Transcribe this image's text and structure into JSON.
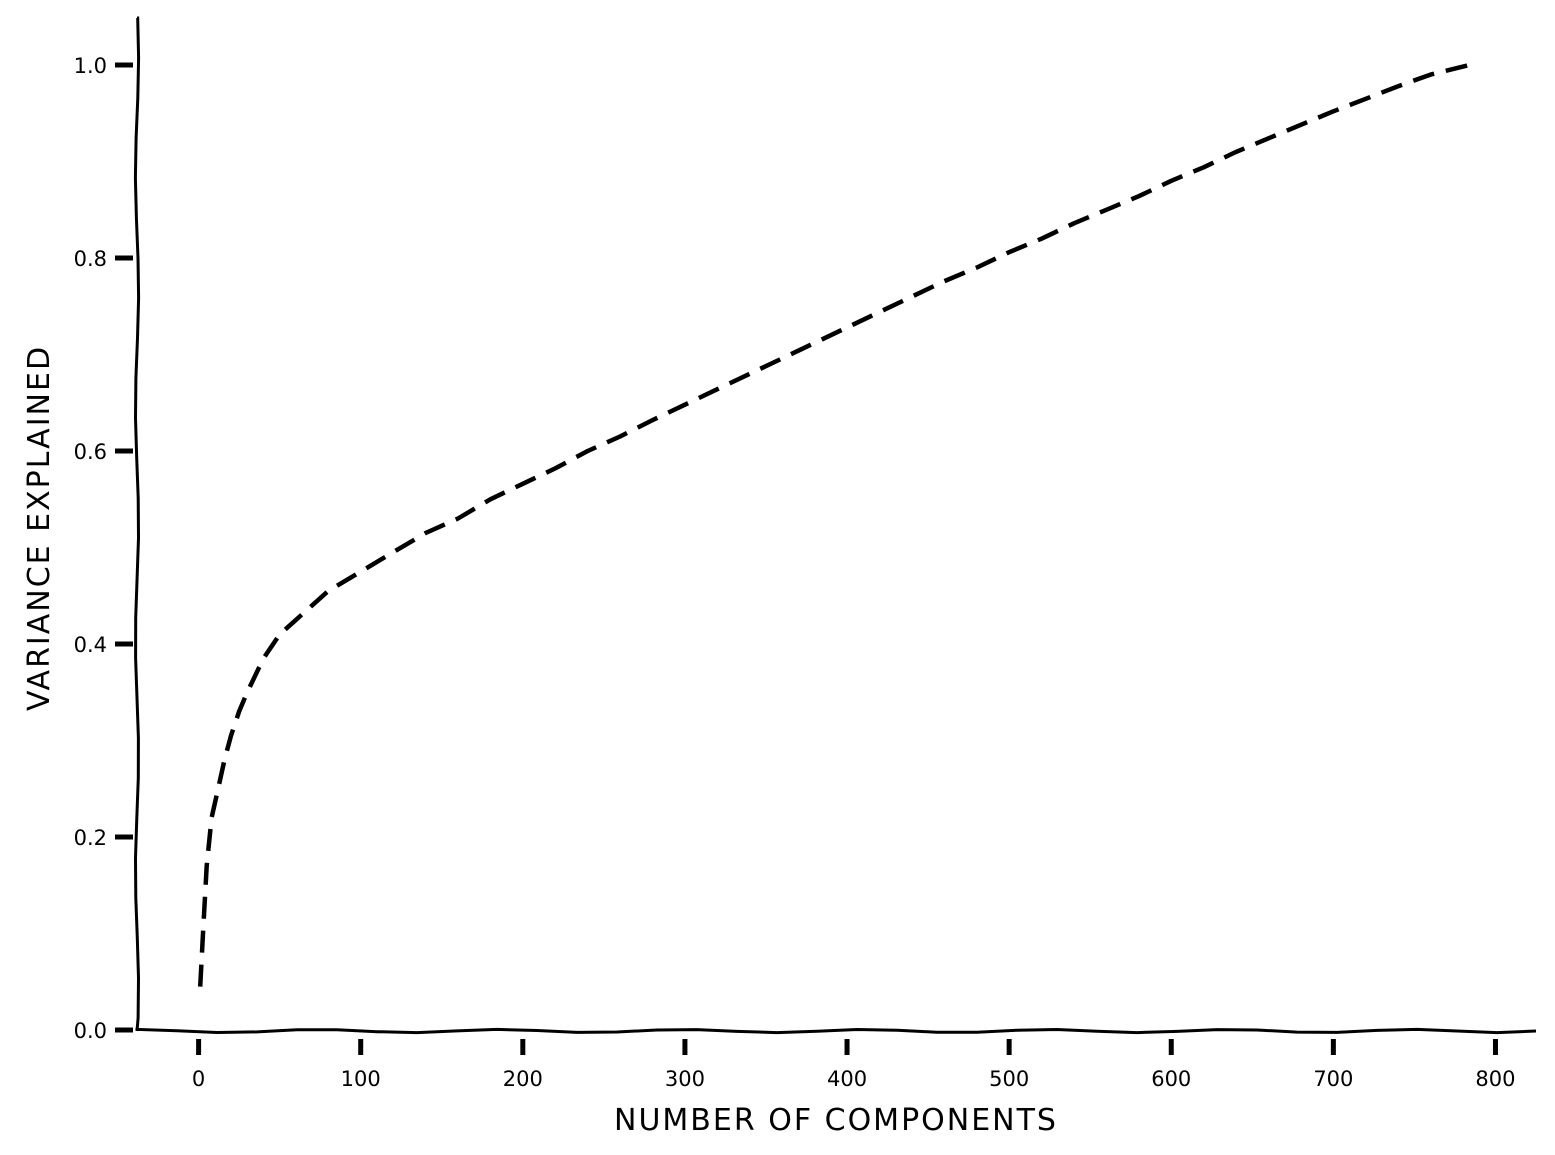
{
  "chart_data": {
    "type": "line",
    "title": "",
    "xlabel": "NUMBER OF COMPONENTS",
    "ylabel": "VARIANCE EXPLAINED",
    "xlim": [
      -38,
      825
    ],
    "ylim": [
      0,
      1.05
    ],
    "xticks": [
      0,
      100,
      200,
      300,
      400,
      500,
      600,
      700,
      800
    ],
    "yticks": [
      0.0,
      0.2,
      0.4,
      0.6,
      0.8,
      1.0
    ],
    "xtick_labels": [
      "0",
      "100",
      "200",
      "300",
      "400",
      "500",
      "600",
      "700",
      "800"
    ],
    "ytick_labels": [
      "0.0",
      "0.2",
      "0.4",
      "0.6",
      "0.8",
      "1.0"
    ],
    "grid": false,
    "legend": null,
    "series": [
      {
        "color": "#000000",
        "style": "dashed",
        "x": [
          1,
          3,
          5,
          8,
          12,
          16,
          20,
          25,
          30,
          40,
          50,
          60,
          70,
          80,
          90,
          100,
          120,
          140,
          160,
          180,
          200,
          220,
          240,
          260,
          280,
          300,
          320,
          340,
          360,
          380,
          400,
          420,
          440,
          460,
          480,
          500,
          520,
          540,
          560,
          580,
          600,
          620,
          640,
          660,
          680,
          700,
          720,
          740,
          760,
          784
        ],
        "y": [
          0.045,
          0.11,
          0.17,
          0.22,
          0.25,
          0.28,
          0.305,
          0.33,
          0.35,
          0.385,
          0.41,
          0.425,
          0.44,
          0.455,
          0.465,
          0.475,
          0.495,
          0.515,
          0.53,
          0.55,
          0.566,
          0.582,
          0.6,
          0.615,
          0.632,
          0.648,
          0.664,
          0.68,
          0.696,
          0.712,
          0.728,
          0.744,
          0.76,
          0.776,
          0.79,
          0.806,
          0.82,
          0.836,
          0.85,
          0.864,
          0.88,
          0.894,
          0.91,
          0.924,
          0.938,
          0.952,
          0.965,
          0.978,
          0.99,
          1.0
        ]
      }
    ]
  }
}
